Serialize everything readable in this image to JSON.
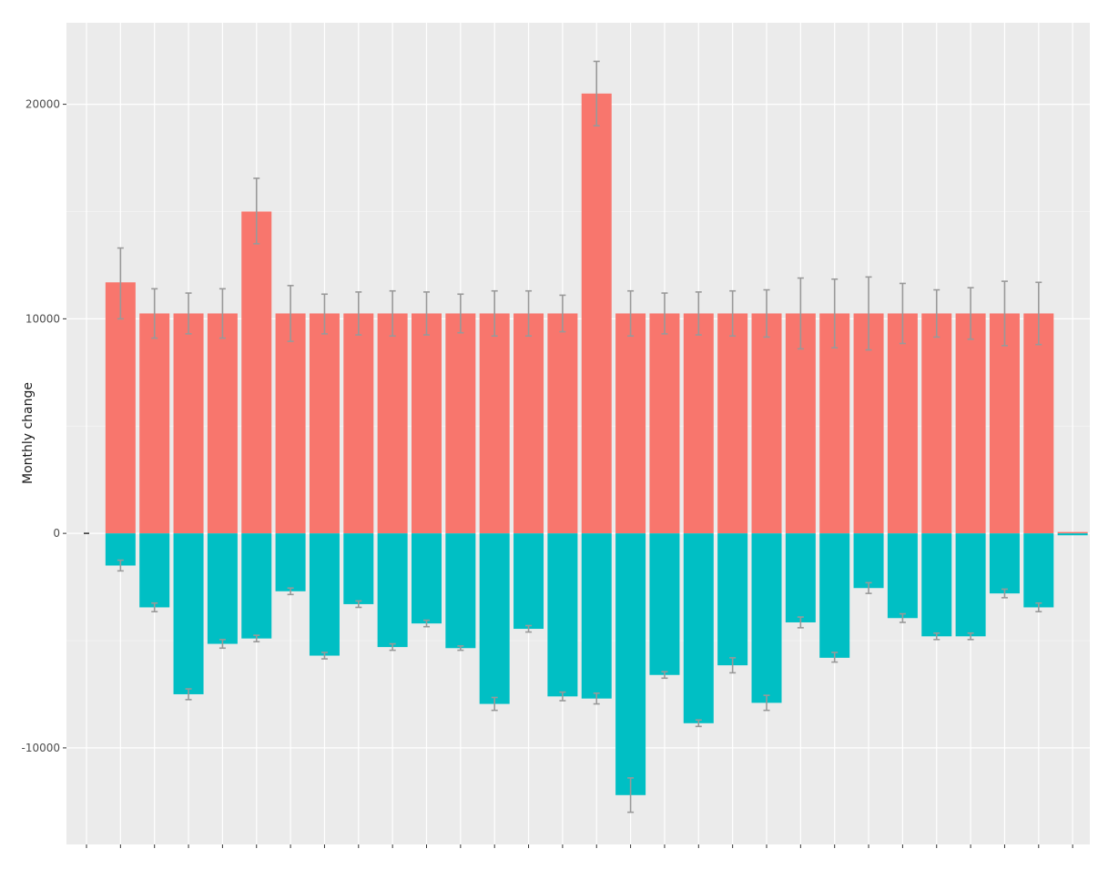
{
  "chart_data": {
    "type": "bar",
    "stacked": "diverging",
    "xlabel": "",
    "ylabel": "Monthly change",
    "ylim": [
      -14500,
      23800
    ],
    "y_ticks": [
      20000,
      10000,
      0,
      -10000
    ],
    "y_tick_labels": [
      "20000",
      "10000",
      "0",
      "-10000"
    ],
    "x_tick_count": 30,
    "grid": true,
    "legend": "none",
    "colors": {
      "positive": "#F8766D",
      "negative": "#00BFC4",
      "errorbar": "#999999",
      "panel": "#EBEBEB",
      "grid_major": "#FFFFFF",
      "grid_minor": "#F5F5F5"
    },
    "series": [
      {
        "values": [
          11700,
          10250,
          10250,
          10250,
          15000,
          10250,
          10250,
          10250,
          10250,
          10250,
          10250,
          10250,
          10250,
          10250,
          20500,
          10250,
          10250,
          10250,
          10250,
          10250,
          10250,
          10250,
          10250,
          10250,
          10250,
          10250,
          10250,
          10250,
          0
        ],
        "err_low": [
          10000,
          9100,
          9300,
          9100,
          13500,
          8950,
          9300,
          9250,
          9200,
          9250,
          9350,
          9200,
          9200,
          9400,
          19000,
          9200,
          9300,
          9250,
          9200,
          9150,
          8600,
          8650,
          8550,
          8850,
          9150,
          9050,
          8750,
          8800,
          null
        ],
        "err_high": [
          13300,
          11400,
          11200,
          11400,
          16550,
          11550,
          11150,
          11250,
          11300,
          11250,
          11150,
          11300,
          11300,
          11100,
          22000,
          11300,
          11200,
          11250,
          11300,
          11350,
          11900,
          11850,
          11950,
          11650,
          11350,
          11450,
          11750,
          11700,
          null
        ]
      },
      {
        "values": [
          -1500,
          -3450,
          -7500,
          -5150,
          -4900,
          -2700,
          -5700,
          -3300,
          -5300,
          -4200,
          -5350,
          -7950,
          -4450,
          -7600,
          -7700,
          -12200,
          -6600,
          -8850,
          -6150,
          -7900,
          -4150,
          -5800,
          -2550,
          -3950,
          -4800,
          -4800,
          -2800,
          -3450,
          -90
        ],
        "err_low": [
          -1750,
          -3650,
          -7750,
          -5350,
          -5050,
          -2850,
          -5850,
          -3450,
          -5450,
          -4350,
          -5450,
          -8250,
          -4600,
          -7800,
          -7950,
          -13000,
          -6750,
          -9000,
          -6500,
          -8250,
          -4400,
          -6000,
          -2800,
          -4150,
          -4950,
          -4950,
          -3000,
          -3650,
          null
        ],
        "err_high": [
          -1250,
          -3250,
          -7250,
          -4950,
          -4750,
          -2550,
          -5550,
          -3150,
          -5150,
          -4050,
          -5250,
          -7650,
          -4300,
          -7400,
          -7450,
          -11400,
          -6450,
          -8700,
          -5800,
          -7550,
          -3900,
          -5550,
          -2300,
          -3750,
          -4650,
          -4650,
          -2600,
          -3250,
          null
        ]
      }
    ]
  }
}
